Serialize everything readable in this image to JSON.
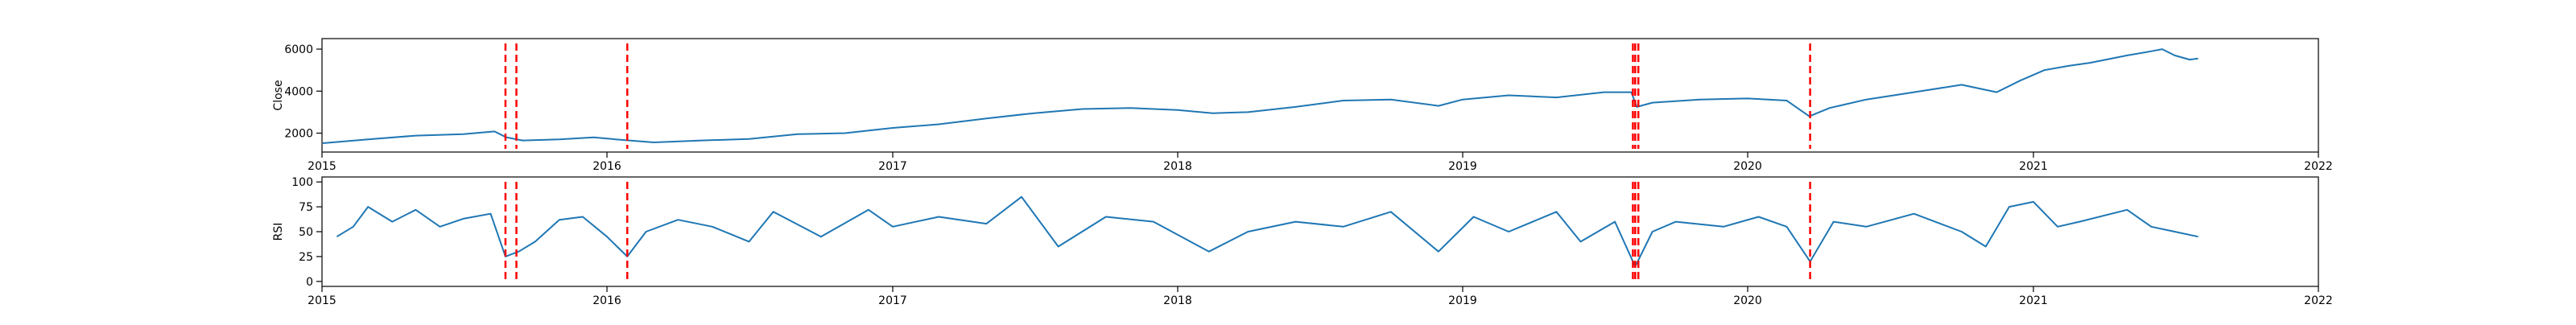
{
  "chart_data": [
    {
      "type": "line",
      "ylabel": "Close",
      "x_range": [
        "2015-01-01",
        "2022-01-01"
      ],
      "ylim": [
        1100,
        6500
      ],
      "yticks": [
        2000,
        4000,
        6000
      ],
      "ytick_labels": [
        "2000",
        "4000",
        "6000"
      ],
      "xtick_labels": [
        "2015",
        "2016",
        "2017",
        "2018",
        "2019",
        "2020",
        "2021",
        "2022"
      ],
      "grid": false,
      "series": [
        {
          "color": "#1f77b4",
          "points": [
            [
              "2015-01-02",
              1520
            ],
            [
              "2015-03-01",
              1700
            ],
            [
              "2015-05-01",
              1880
            ],
            [
              "2015-07-01",
              1950
            ],
            [
              "2015-08-10",
              2080
            ],
            [
              "2015-08-25",
              1800
            ],
            [
              "2015-09-15",
              1650
            ],
            [
              "2015-11-01",
              1700
            ],
            [
              "2015-12-15",
              1800
            ],
            [
              "2016-01-20",
              1680
            ],
            [
              "2016-03-01",
              1560
            ],
            [
              "2016-05-01",
              1650
            ],
            [
              "2016-07-01",
              1720
            ],
            [
              "2016-09-01",
              1950
            ],
            [
              "2016-11-01",
              2000
            ],
            [
              "2017-01-01",
              2250
            ],
            [
              "2017-03-01",
              2420
            ],
            [
              "2017-05-01",
              2700
            ],
            [
              "2017-07-01",
              2950
            ],
            [
              "2017-09-01",
              3150
            ],
            [
              "2017-11-01",
              3200
            ],
            [
              "2018-01-01",
              3100
            ],
            [
              "2018-02-15",
              2950
            ],
            [
              "2018-04-01",
              3000
            ],
            [
              "2018-06-01",
              3250
            ],
            [
              "2018-08-01",
              3550
            ],
            [
              "2018-10-01",
              3600
            ],
            [
              "2018-12-01",
              3300
            ],
            [
              "2019-01-01",
              3600
            ],
            [
              "2019-03-01",
              3800
            ],
            [
              "2019-05-01",
              3700
            ],
            [
              "2019-07-01",
              3950
            ],
            [
              "2019-08-05",
              3950
            ],
            [
              "2019-08-12",
              3250
            ],
            [
              "2019-09-01",
              3450
            ],
            [
              "2019-11-01",
              3600
            ],
            [
              "2020-01-01",
              3650
            ],
            [
              "2020-02-20",
              3550
            ],
            [
              "2020-03-20",
              2800
            ],
            [
              "2020-04-15",
              3200
            ],
            [
              "2020-06-01",
              3600
            ],
            [
              "2020-08-01",
              3950
            ],
            [
              "2020-10-01",
              4300
            ],
            [
              "2020-11-15",
              3950
            ],
            [
              "2020-12-15",
              4500
            ],
            [
              "2021-01-15",
              5000
            ],
            [
              "2021-02-15",
              5200
            ],
            [
              "2021-03-15",
              5350
            ],
            [
              "2021-05-01",
              5700
            ],
            [
              "2021-06-01",
              5900
            ],
            [
              "2021-06-15",
              6000
            ],
            [
              "2021-07-01",
              5700
            ],
            [
              "2021-07-20",
              5500
            ],
            [
              "2021-07-31",
              5550
            ]
          ]
        }
      ],
      "annotations": {
        "vlines": [
          "2015-08-24",
          "2015-09-07",
          "2016-01-27",
          "2019-08-07",
          "2019-08-10",
          "2019-08-14",
          "2020-03-21"
        ],
        "color": "#ff0000",
        "linestyle": "dashed"
      }
    },
    {
      "type": "line",
      "ylabel": "RSI",
      "x_range": [
        "2015-01-01",
        "2022-01-01"
      ],
      "ylim": [
        -5,
        105
      ],
      "yticks": [
        0,
        25,
        50,
        75,
        100
      ],
      "ytick_labels": [
        "0",
        "25",
        "50",
        "75",
        "100"
      ],
      "xtick_labels": [
        "2015",
        "2016",
        "2017",
        "2018",
        "2019",
        "2020",
        "2021",
        "2022"
      ],
      "grid": false,
      "series": [
        {
          "color": "#1f77b4",
          "points": [
            [
              "2015-01-20",
              45
            ],
            [
              "2015-02-10",
              55
            ],
            [
              "2015-03-01",
              75
            ],
            [
              "2015-04-01",
              60
            ],
            [
              "2015-05-01",
              72
            ],
            [
              "2015-06-01",
              55
            ],
            [
              "2015-07-01",
              63
            ],
            [
              "2015-08-05",
              68
            ],
            [
              "2015-08-24",
              25
            ],
            [
              "2015-09-10",
              30
            ],
            [
              "2015-10-01",
              40
            ],
            [
              "2015-11-01",
              62
            ],
            [
              "2015-12-01",
              65
            ],
            [
              "2016-01-01",
              45
            ],
            [
              "2016-01-27",
              25
            ],
            [
              "2016-02-20",
              50
            ],
            [
              "2016-04-01",
              62
            ],
            [
              "2016-05-15",
              55
            ],
            [
              "2016-07-01",
              40
            ],
            [
              "2016-08-01",
              70
            ],
            [
              "2016-10-01",
              45
            ],
            [
              "2016-12-01",
              72
            ],
            [
              "2017-01-01",
              55
            ],
            [
              "2017-03-01",
              65
            ],
            [
              "2017-05-01",
              58
            ],
            [
              "2017-06-15",
              85
            ],
            [
              "2017-08-01",
              35
            ],
            [
              "2017-10-01",
              65
            ],
            [
              "2017-12-01",
              60
            ],
            [
              "2018-02-10",
              30
            ],
            [
              "2018-04-01",
              50
            ],
            [
              "2018-06-01",
              60
            ],
            [
              "2018-08-01",
              55
            ],
            [
              "2018-10-01",
              70
            ],
            [
              "2018-12-01",
              30
            ],
            [
              "2019-01-15",
              65
            ],
            [
              "2019-03-01",
              50
            ],
            [
              "2019-05-01",
              70
            ],
            [
              "2019-06-01",
              40
            ],
            [
              "2019-07-15",
              60
            ],
            [
              "2019-08-10",
              15
            ],
            [
              "2019-09-01",
              50
            ],
            [
              "2019-10-01",
              60
            ],
            [
              "2019-12-01",
              55
            ],
            [
              "2020-01-15",
              65
            ],
            [
              "2020-02-20",
              55
            ],
            [
              "2020-03-21",
              20
            ],
            [
              "2020-04-20",
              60
            ],
            [
              "2020-06-01",
              55
            ],
            [
              "2020-08-01",
              68
            ],
            [
              "2020-10-01",
              50
            ],
            [
              "2020-11-01",
              35
            ],
            [
              "2020-12-01",
              75
            ],
            [
              "2021-01-01",
              80
            ],
            [
              "2021-02-01",
              55
            ],
            [
              "2021-03-01",
              60
            ],
            [
              "2021-05-01",
              72
            ],
            [
              "2021-06-01",
              55
            ],
            [
              "2021-07-01",
              50
            ],
            [
              "2021-07-31",
              45
            ]
          ]
        }
      ],
      "annotations": {
        "vlines": [
          "2015-08-24",
          "2015-09-07",
          "2016-01-27",
          "2019-08-07",
          "2019-08-10",
          "2019-08-14",
          "2020-03-21"
        ],
        "color": "#ff0000",
        "linestyle": "dashed"
      }
    }
  ]
}
